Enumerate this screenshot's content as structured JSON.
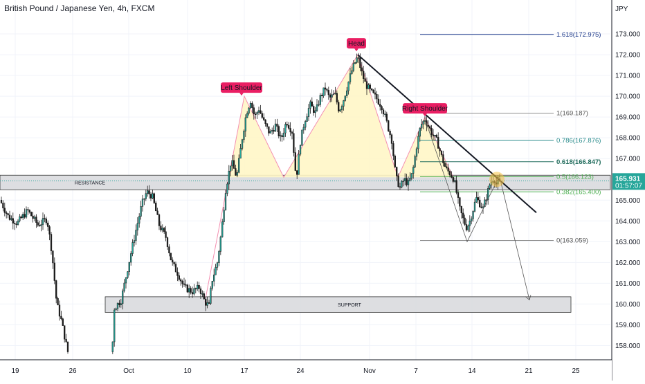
{
  "symbol": {
    "title": "British Pound / Japanese Yen, 4h, FXCM",
    "currency": "JPY"
  },
  "price_label": {
    "price": "165.931",
    "countdown": "01:57:07"
  },
  "colors": {
    "up": "#26a69a",
    "down": "#ef5350",
    "candle": "#1a1a1a",
    "bg": "#ffffff",
    "grid": "#f0f3fa",
    "fib": "#1e3a8a",
    "fib_teal": "#2a8c8c",
    "fib_gray": "#8a8a8a",
    "fib_green": "#4caf50",
    "pattern_fill": "#fff6c7",
    "pattern_line": "#f48fb1",
    "label_pink": "#e91e63",
    "zone": "#d7d8dc",
    "trendline": "#131722"
  },
  "chart_data": {
    "type": "candlestick",
    "title": "British Pound / Japanese Yen, 4h, FXCM",
    "ylabel": "JPY",
    "ylim": [
      157.35,
      174.1
    ],
    "xlim": [
      0,
      932
    ],
    "grid": true,
    "y_ticks": [
      "158.000",
      "159.000",
      "160.000",
      "161.000",
      "162.000",
      "163.000",
      "164.000",
      "165.000",
      "166.000",
      "167.000",
      "168.000",
      "169.000",
      "170.000",
      "171.000",
      "172.000",
      "173.000"
    ],
    "x_ticks": [
      {
        "label": "19",
        "x": 22
      },
      {
        "label": "26",
        "x": 105
      },
      {
        "label": "Oct",
        "x": 186
      },
      {
        "label": "10",
        "x": 271
      },
      {
        "label": "17",
        "x": 353
      },
      {
        "label": "24",
        "x": 434
      },
      {
        "label": "Nov",
        "x": 534
      },
      {
        "label": "7",
        "x": 601
      },
      {
        "label": "14",
        "x": 682
      },
      {
        "label": "21",
        "x": 764
      },
      {
        "label": "25",
        "x": 832
      }
    ],
    "price_path": [
      [
        0,
        165.0
      ],
      [
        12,
        164.2
      ],
      [
        25,
        163.9
      ],
      [
        40,
        164.5
      ],
      [
        55,
        163.8
      ],
      [
        68,
        164.1
      ],
      [
        75,
        162.5
      ],
      [
        82,
        160.0
      ],
      [
        88,
        159.3
      ],
      [
        96,
        158.0
      ],
      [
        100,
        157.4
      ],
      [
        162,
        157.6
      ],
      [
        165,
        159.8
      ],
      [
        175,
        160.2
      ],
      [
        185,
        161.8
      ],
      [
        196,
        163.5
      ],
      [
        205,
        164.8
      ],
      [
        212,
        165.4
      ],
      [
        220,
        165.2
      ],
      [
        230,
        163.8
      ],
      [
        240,
        163.2
      ],
      [
        248,
        162.0
      ],
      [
        258,
        161.4
      ],
      [
        266,
        160.8
      ],
      [
        278,
        160.6
      ],
      [
        288,
        160.8
      ],
      [
        296,
        160.1
      ],
      [
        302,
        159.9
      ],
      [
        306,
        161.1
      ],
      [
        314,
        162.0
      ],
      [
        320,
        163.5
      ],
      [
        326,
        165.5
      ],
      [
        334,
        166.9
      ],
      [
        342,
        166.1
      ],
      [
        350,
        168.0
      ],
      [
        356,
        169.2
      ],
      [
        362,
        169.8
      ],
      [
        368,
        169.0
      ],
      [
        374,
        169.4
      ],
      [
        382,
        168.7
      ],
      [
        390,
        168.2
      ],
      [
        398,
        168.6
      ],
      [
        406,
        167.9
      ],
      [
        414,
        168.8
      ],
      [
        422,
        168.3
      ],
      [
        428,
        166.0
      ],
      [
        434,
        167.8
      ],
      [
        440,
        168.8
      ],
      [
        448,
        169.6
      ],
      [
        456,
        169.2
      ],
      [
        462,
        169.9
      ],
      [
        470,
        170.4
      ],
      [
        476,
        169.9
      ],
      [
        484,
        170.1
      ],
      [
        490,
        169.3
      ],
      [
        496,
        169.8
      ],
      [
        502,
        170.5
      ],
      [
        508,
        171.2
      ],
      [
        514,
        171.7
      ],
      [
        517,
        171.9
      ],
      [
        522,
        171.2
      ],
      [
        528,
        170.6
      ],
      [
        536,
        170.2
      ],
      [
        544,
        169.9
      ],
      [
        552,
        169.5
      ],
      [
        560,
        168.6
      ],
      [
        566,
        167.9
      ],
      [
        572,
        166.1
      ],
      [
        578,
        165.6
      ],
      [
        584,
        166.0
      ],
      [
        590,
        165.8
      ],
      [
        596,
        166.3
      ],
      [
        602,
        167.6
      ],
      [
        608,
        168.6
      ],
      [
        614,
        168.9
      ],
      [
        620,
        168.5
      ],
      [
        626,
        168.1
      ],
      [
        632,
        167.8
      ],
      [
        638,
        167.1
      ],
      [
        644,
        166.5
      ],
      [
        650,
        166.3
      ],
      [
        656,
        166.0
      ],
      [
        660,
        165.3
      ],
      [
        664,
        164.6
      ],
      [
        670,
        164.0
      ],
      [
        674,
        163.7
      ],
      [
        678,
        163.9
      ],
      [
        684,
        164.6
      ],
      [
        688,
        165.1
      ],
      [
        694,
        164.8
      ],
      [
        698,
        164.6
      ],
      [
        704,
        165.3
      ],
      [
        708,
        165.8
      ],
      [
        714,
        166.1
      ],
      [
        718,
        165.7
      ],
      [
        722,
        165.93
      ]
    ],
    "fibonacci": [
      {
        "label": "1.618(172.975)",
        "level": 172.975
      },
      {
        "label": "1(169.187)",
        "level": 169.187
      },
      {
        "label": "0.786(167.876)",
        "level": 167.876
      },
      {
        "label": "0.618(166.847)",
        "level": 166.847
      },
      {
        "label": "0.5(166.123)",
        "level": 166.123
      },
      {
        "label": "0.382(165.400)",
        "level": 165.4
      },
      {
        "label": "0(163.059)",
        "level": 163.059
      }
    ],
    "zones": [
      {
        "label": "RESISTANCE",
        "top": 166.2,
        "bottom": 165.5
      },
      {
        "label": "SUPPORT",
        "top": 160.35,
        "bottom": 159.6
      }
    ],
    "annotations": [
      "Head",
      "Left Shoulder",
      "Right Shoulder"
    ]
  }
}
